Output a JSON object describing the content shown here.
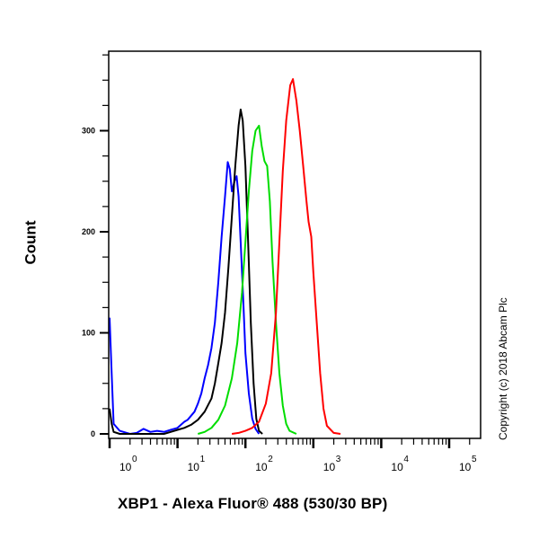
{
  "chart_data": {
    "type": "line",
    "title": "",
    "xlabel": "XBP1 - Alexa Fluor® 488 (530/30 BP)",
    "ylabel": "Count",
    "xscale": "log",
    "xlim_log10": [
      0,
      5.5
    ],
    "ylim": [
      0,
      360
    ],
    "x_tick_labels": [
      "10^0",
      "10^1",
      "10^2",
      "10^3",
      "10^4",
      "10^5"
    ],
    "y_tick_labels": [
      "0",
      "100",
      "200",
      "300"
    ],
    "y_minor_tick_step": 25,
    "grid": false,
    "legend": null,
    "annotations": [
      "Copyright (c) 2018 Abcam Plc"
    ],
    "series": [
      {
        "name": "blue",
        "color": "#0000ff",
        "points_log10x_count": [
          [
            0.0,
            115
          ],
          [
            0.03,
            60
          ],
          [
            0.06,
            10
          ],
          [
            0.15,
            3
          ],
          [
            0.3,
            0
          ],
          [
            0.4,
            1
          ],
          [
            0.5,
            5
          ],
          [
            0.6,
            2
          ],
          [
            0.7,
            3
          ],
          [
            0.8,
            2
          ],
          [
            0.9,
            4
          ],
          [
            1.0,
            6
          ],
          [
            1.05,
            9
          ],
          [
            1.1,
            12
          ],
          [
            1.15,
            14
          ],
          [
            1.2,
            18
          ],
          [
            1.25,
            22
          ],
          [
            1.3,
            30
          ],
          [
            1.35,
            40
          ],
          [
            1.4,
            55
          ],
          [
            1.45,
            68
          ],
          [
            1.5,
            85
          ],
          [
            1.55,
            110
          ],
          [
            1.6,
            150
          ],
          [
            1.65,
            195
          ],
          [
            1.7,
            235
          ],
          [
            1.74,
            269
          ],
          [
            1.77,
            262
          ],
          [
            1.8,
            240
          ],
          [
            1.84,
            250
          ],
          [
            1.87,
            255
          ],
          [
            1.9,
            235
          ],
          [
            1.93,
            190
          ],
          [
            1.97,
            130
          ],
          [
            2.0,
            80
          ],
          [
            2.05,
            40
          ],
          [
            2.1,
            15
          ],
          [
            2.15,
            5
          ],
          [
            2.2,
            0
          ]
        ]
      },
      {
        "name": "black",
        "color": "#000000",
        "points_log10x_count": [
          [
            0.0,
            25
          ],
          [
            0.03,
            10
          ],
          [
            0.06,
            2
          ],
          [
            0.15,
            0
          ],
          [
            0.8,
            0
          ],
          [
            0.9,
            2
          ],
          [
            1.0,
            4
          ],
          [
            1.1,
            6
          ],
          [
            1.2,
            9
          ],
          [
            1.3,
            14
          ],
          [
            1.4,
            22
          ],
          [
            1.5,
            35
          ],
          [
            1.55,
            50
          ],
          [
            1.6,
            70
          ],
          [
            1.65,
            90
          ],
          [
            1.7,
            120
          ],
          [
            1.75,
            165
          ],
          [
            1.8,
            215
          ],
          [
            1.85,
            265
          ],
          [
            1.9,
            305
          ],
          [
            1.93,
            321
          ],
          [
            1.96,
            310
          ],
          [
            2.0,
            265
          ],
          [
            2.04,
            190
          ],
          [
            2.08,
            110
          ],
          [
            2.12,
            50
          ],
          [
            2.16,
            15
          ],
          [
            2.2,
            3
          ],
          [
            2.25,
            0
          ]
        ]
      },
      {
        "name": "green",
        "color": "#00dd00",
        "points_log10x_count": [
          [
            1.3,
            0
          ],
          [
            1.4,
            2
          ],
          [
            1.5,
            6
          ],
          [
            1.6,
            14
          ],
          [
            1.7,
            28
          ],
          [
            1.8,
            55
          ],
          [
            1.88,
            90
          ],
          [
            1.95,
            140
          ],
          [
            2.0,
            190
          ],
          [
            2.05,
            240
          ],
          [
            2.1,
            280
          ],
          [
            2.15,
            300
          ],
          [
            2.2,
            305
          ],
          [
            2.24,
            285
          ],
          [
            2.28,
            270
          ],
          [
            2.32,
            265
          ],
          [
            2.36,
            230
          ],
          [
            2.4,
            170
          ],
          [
            2.45,
            110
          ],
          [
            2.5,
            60
          ],
          [
            2.55,
            28
          ],
          [
            2.6,
            10
          ],
          [
            2.65,
            3
          ],
          [
            2.75,
            0
          ]
        ]
      },
      {
        "name": "red",
        "color": "#ff0000",
        "points_log10x_count": [
          [
            1.8,
            0
          ],
          [
            1.9,
            1
          ],
          [
            2.0,
            3
          ],
          [
            2.1,
            6
          ],
          [
            2.2,
            12
          ],
          [
            2.3,
            30
          ],
          [
            2.38,
            60
          ],
          [
            2.45,
            120
          ],
          [
            2.5,
            190
          ],
          [
            2.55,
            260
          ],
          [
            2.6,
            310
          ],
          [
            2.66,
            345
          ],
          [
            2.7,
            351
          ],
          [
            2.75,
            330
          ],
          [
            2.8,
            300
          ],
          [
            2.85,
            265
          ],
          [
            2.9,
            230
          ],
          [
            2.93,
            210
          ],
          [
            2.97,
            195
          ],
          [
            3.0,
            160
          ],
          [
            3.05,
            110
          ],
          [
            3.1,
            60
          ],
          [
            3.15,
            25
          ],
          [
            3.2,
            8
          ],
          [
            3.3,
            1
          ],
          [
            3.4,
            0
          ]
        ]
      }
    ]
  },
  "labels": {
    "y_title": "Count",
    "x_title": "XBP1 - Alexa Fluor® 488 (530/30 BP)",
    "copyright": "Copyright (c) 2018 Abcam Plc"
  }
}
